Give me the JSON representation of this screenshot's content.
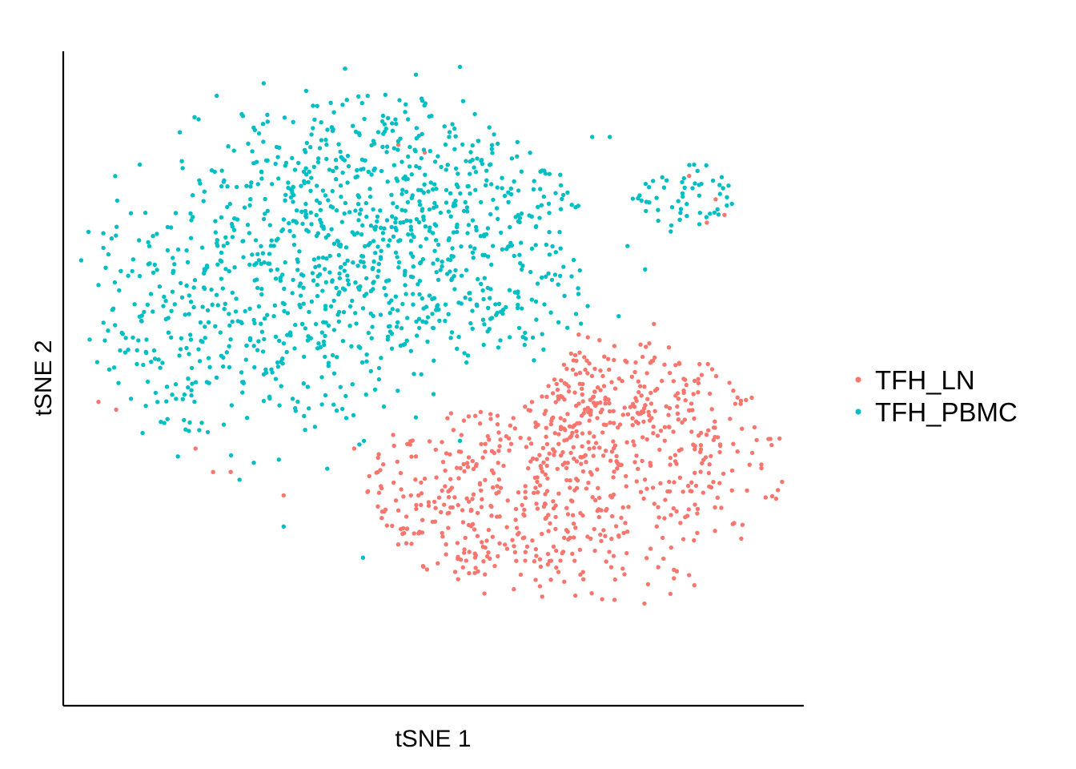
{
  "chart_data": {
    "type": "scatter",
    "title": "",
    "xlabel": "tSNE 1",
    "ylabel": "tSNE 2",
    "xlim": [
      -42,
      42
    ],
    "ylim": [
      -42,
      42
    ],
    "grid": false,
    "x_ticks": false,
    "y_ticks": false,
    "legend_position": "right",
    "series": [
      {
        "name": "TFH_LN",
        "color": "#F8766D",
        "clusters": [
          {
            "cx": 15,
            "cy": -11,
            "sx": 13,
            "sy": 10,
            "n": 560
          },
          {
            "cx": 21,
            "cy": -3,
            "sx": 8,
            "sy": 5,
            "n": 140
          },
          {
            "cx": 3,
            "cy": -19,
            "sx": 8,
            "sy": 5,
            "n": 90
          },
          {
            "cx": -12,
            "cy": -16,
            "sx": 5,
            "sy": 4,
            "n": 22
          }
        ],
        "points": [
          [
            -38,
            -3
          ],
          [
            -36,
            -4
          ],
          [
            -27,
            -9
          ],
          [
            -25,
            -12
          ],
          [
            -23,
            -12
          ],
          [
            -4,
            30
          ],
          [
            -1,
            29
          ],
          [
            29,
            26
          ],
          [
            32,
            23
          ],
          [
            31,
            20
          ],
          [
            33,
            21
          ],
          [
            25,
            7
          ],
          [
            -17,
            -15
          ],
          [
            -9,
            -9
          ],
          [
            -2,
            -10
          ]
        ]
      },
      {
        "name": "TFH_PBMC",
        "color": "#00BFC4",
        "clusters": [
          {
            "cx": -13,
            "cy": 13,
            "sx": 13,
            "sy": 11,
            "n": 720
          },
          {
            "cx": -4,
            "cy": 26,
            "sx": 10,
            "sy": 6,
            "n": 230
          },
          {
            "cx": 5,
            "cy": 16,
            "sx": 9,
            "sy": 9,
            "n": 160
          },
          {
            "cx": -30,
            "cy": 4,
            "sx": 5,
            "sy": 8,
            "n": 90
          },
          {
            "cx": 28,
            "cy": 23,
            "sx": 4,
            "sy": 3,
            "n": 55
          }
        ],
        "points": [
          [
            -38,
            12
          ],
          [
            -39,
            5
          ],
          [
            -33,
            -7
          ],
          [
            -29,
            -10
          ],
          [
            -22,
            -13
          ],
          [
            -2,
            39
          ],
          [
            3,
            40
          ],
          [
            18,
            31
          ],
          [
            20,
            31
          ],
          [
            22,
            17
          ],
          [
            24,
            14
          ],
          [
            21,
            8
          ],
          [
            -17,
            -19
          ],
          [
            -8,
            -23
          ],
          [
            3,
            -8
          ],
          [
            0,
            -2
          ],
          [
            -2,
            -5
          ]
        ]
      }
    ]
  }
}
